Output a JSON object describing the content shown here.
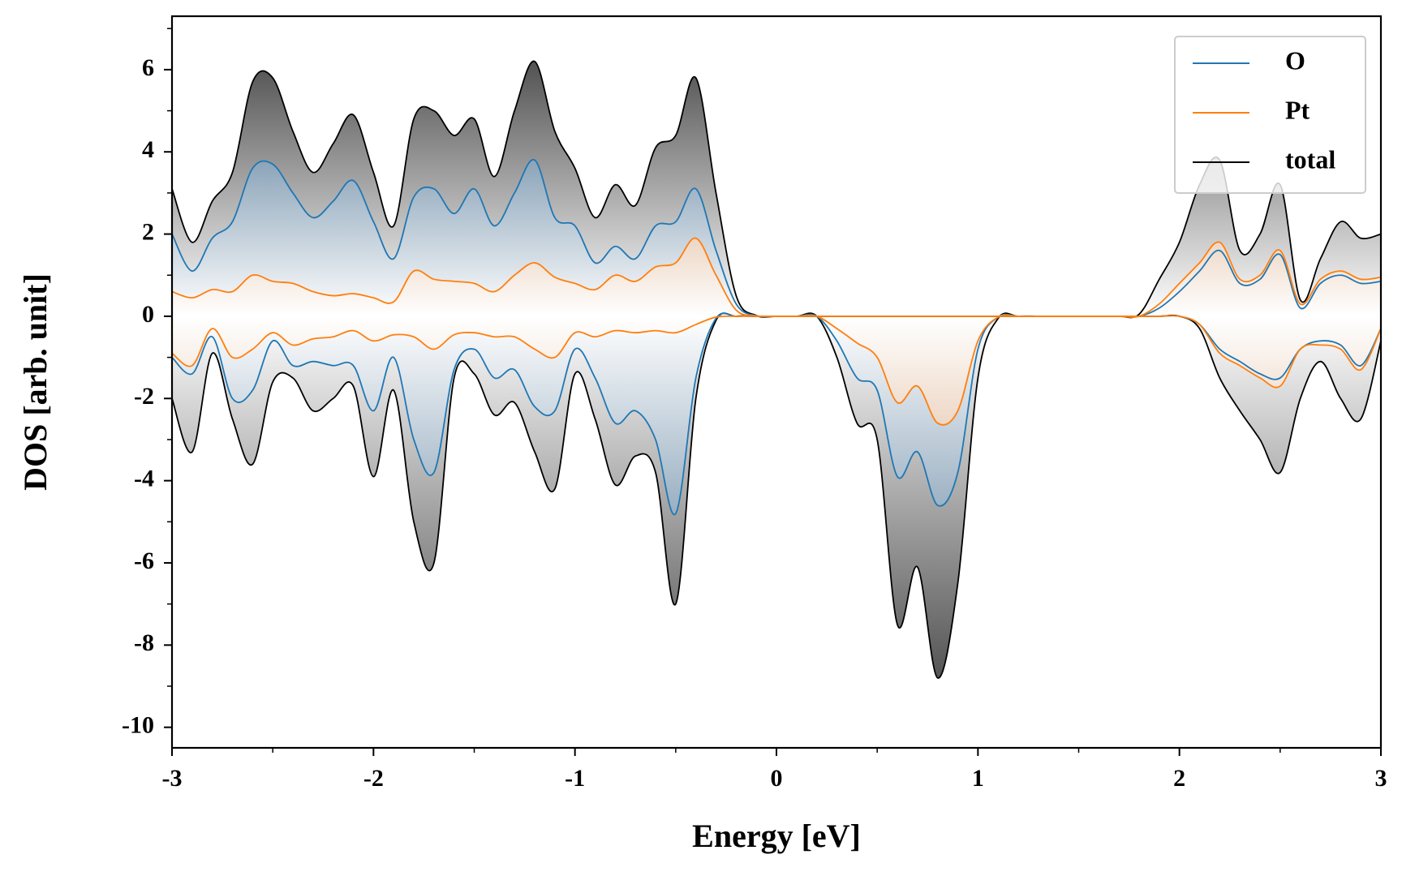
{
  "chart_data": {
    "type": "line",
    "xlabel": "Energy [eV]",
    "ylabel": "DOS [arb. unit]",
    "xlim": [
      -3,
      3
    ],
    "ylim": [
      -10.5,
      7.3
    ],
    "xticks": [
      -3,
      -2,
      -1,
      0,
      1,
      2,
      3
    ],
    "xminorticks": [
      -2.5,
      -1.5,
      -0.5,
      0.5,
      1.5,
      2.5
    ],
    "yticks": [
      -10,
      -8,
      -6,
      -4,
      -2,
      0,
      2,
      4,
      6
    ],
    "yminorticks": [
      -9,
      -7,
      -5,
      -3,
      -1,
      1,
      3,
      5,
      7
    ],
    "legend": "upper right",
    "x": [
      -3.0,
      -2.9,
      -2.8,
      -2.7,
      -2.6,
      -2.5,
      -2.4,
      -2.3,
      -2.2,
      -2.1,
      -2.0,
      -1.9,
      -1.8,
      -1.7,
      -1.6,
      -1.5,
      -1.4,
      -1.3,
      -1.2,
      -1.1,
      -1.0,
      -0.9,
      -0.8,
      -0.7,
      -0.6,
      -0.5,
      -0.4,
      -0.3,
      -0.2,
      -0.1,
      0.0,
      0.1,
      0.2,
      0.3,
      0.4,
      0.5,
      0.6,
      0.7,
      0.8,
      0.9,
      1.0,
      1.1,
      1.2,
      1.3,
      1.4,
      1.5,
      1.6,
      1.7,
      1.8,
      1.9,
      2.0,
      2.1,
      2.2,
      2.3,
      2.4,
      2.5,
      2.6,
      2.7,
      2.8,
      2.9,
      3.0
    ],
    "series": [
      {
        "name": "O",
        "color": "#1f77b4",
        "fill_color": "#1f4f78",
        "values": [
          2.0,
          1.1,
          1.9,
          2.3,
          3.6,
          3.7,
          3.0,
          2.4,
          2.8,
          3.3,
          2.3,
          1.4,
          2.9,
          3.1,
          2.5,
          3.1,
          2.2,
          3.0,
          3.8,
          2.4,
          2.2,
          1.3,
          1.7,
          1.4,
          2.2,
          2.3,
          3.1,
          1.6,
          0.3,
          0.01,
          0,
          0,
          0,
          0,
          0,
          0,
          0,
          0,
          0,
          0,
          0,
          0,
          0,
          0,
          0,
          0,
          0,
          0,
          0,
          0.2,
          0.6,
          1.1,
          1.6,
          0.8,
          0.9,
          1.5,
          0.2,
          0.8,
          1.0,
          0.8,
          0.85
        ],
        "values_down": [
          -1.0,
          -1.4,
          -0.5,
          -2.0,
          -1.8,
          -0.6,
          -1.2,
          -1.1,
          -1.2,
          -1.2,
          -2.3,
          -1.0,
          -3.0,
          -3.8,
          -1.3,
          -0.8,
          -1.5,
          -1.3,
          -2.2,
          -2.3,
          -0.8,
          -1.5,
          -2.6,
          -2.3,
          -3.0,
          -4.8,
          -1.5,
          -0.05,
          0,
          0,
          0,
          0,
          0,
          -0.6,
          -1.5,
          -1.8,
          -3.9,
          -3.3,
          -4.6,
          -3.8,
          -0.8,
          -0.02,
          0,
          0,
          0,
          0,
          0,
          0,
          0,
          0,
          0,
          -0.2,
          -0.8,
          -1.1,
          -1.4,
          -1.5,
          -0.8,
          -0.6,
          -0.7,
          -1.2,
          -0.3
        ]
      },
      {
        "name": "Pt",
        "color": "#ff7f0e",
        "fill_color": "#b8621c",
        "values": [
          0.6,
          0.45,
          0.65,
          0.6,
          1.0,
          0.85,
          0.8,
          0.6,
          0.5,
          0.55,
          0.45,
          0.35,
          1.1,
          0.9,
          0.85,
          0.8,
          0.6,
          1.0,
          1.3,
          0.95,
          0.8,
          0.65,
          1.0,
          0.85,
          1.2,
          1.3,
          1.9,
          1.0,
          0.15,
          0.01,
          0,
          0,
          0,
          0,
          0,
          0,
          0,
          0,
          0,
          0,
          0,
          0,
          0,
          0,
          0,
          0,
          0,
          0,
          0,
          0.3,
          0.8,
          1.3,
          1.8,
          0.9,
          1.0,
          1.6,
          0.3,
          0.9,
          1.1,
          0.9,
          0.95
        ],
        "values_down": [
          -0.9,
          -1.2,
          -0.3,
          -1.0,
          -0.8,
          -0.4,
          -0.7,
          -0.55,
          -0.5,
          -0.35,
          -0.6,
          -0.45,
          -0.5,
          -0.8,
          -0.45,
          -0.4,
          -0.5,
          -0.5,
          -0.8,
          -1.0,
          -0.4,
          -0.5,
          -0.35,
          -0.4,
          -0.35,
          -0.4,
          -0.2,
          -0.02,
          0,
          0,
          0,
          0,
          0,
          -0.3,
          -0.65,
          -1.0,
          -2.1,
          -1.7,
          -2.6,
          -2.3,
          -0.6,
          -0.02,
          0,
          0,
          0,
          0,
          0,
          0,
          0,
          0,
          0,
          -0.2,
          -0.9,
          -1.2,
          -1.5,
          -1.7,
          -0.8,
          -0.7,
          -0.8,
          -1.3,
          -0.3
        ]
      },
      {
        "name": "total",
        "color": "#000000",
        "fill_color": "#333333",
        "values": [
          3.1,
          1.8,
          2.8,
          3.5,
          5.7,
          5.8,
          4.5,
          3.5,
          4.2,
          4.9,
          3.5,
          2.2,
          4.8,
          5.0,
          4.4,
          4.8,
          3.4,
          5.0,
          6.2,
          4.5,
          3.6,
          2.4,
          3.2,
          2.7,
          4.1,
          4.4,
          5.8,
          3.0,
          0.5,
          0.02,
          0,
          0,
          0,
          0,
          0,
          0,
          0,
          0,
          0,
          0,
          0,
          0,
          0,
          0,
          0,
          0,
          0,
          0,
          0.05,
          0.9,
          1.8,
          3.2,
          3.8,
          1.6,
          2.0,
          3.2,
          0.4,
          1.4,
          2.3,
          1.9,
          2.0
        ],
        "values_down": [
          -2.0,
          -3.3,
          -0.9,
          -2.5,
          -3.6,
          -1.6,
          -1.5,
          -2.3,
          -2.0,
          -1.7,
          -3.9,
          -1.8,
          -5.0,
          -6.0,
          -1.5,
          -1.4,
          -2.4,
          -2.1,
          -3.3,
          -4.2,
          -1.4,
          -2.5,
          -4.1,
          -3.4,
          -3.8,
          -7.0,
          -2.0,
          -0.1,
          0,
          0,
          0,
          0,
          0,
          -1.0,
          -2.6,
          -3.0,
          -7.5,
          -6.1,
          -8.8,
          -6.5,
          -1.5,
          -0.05,
          0,
          0,
          0,
          0,
          0,
          0,
          0,
          0,
          0,
          -0.3,
          -1.5,
          -2.3,
          -3.0,
          -3.8,
          -2.0,
          -1.1,
          -2.0,
          -2.5,
          -0.6
        ]
      }
    ]
  }
}
